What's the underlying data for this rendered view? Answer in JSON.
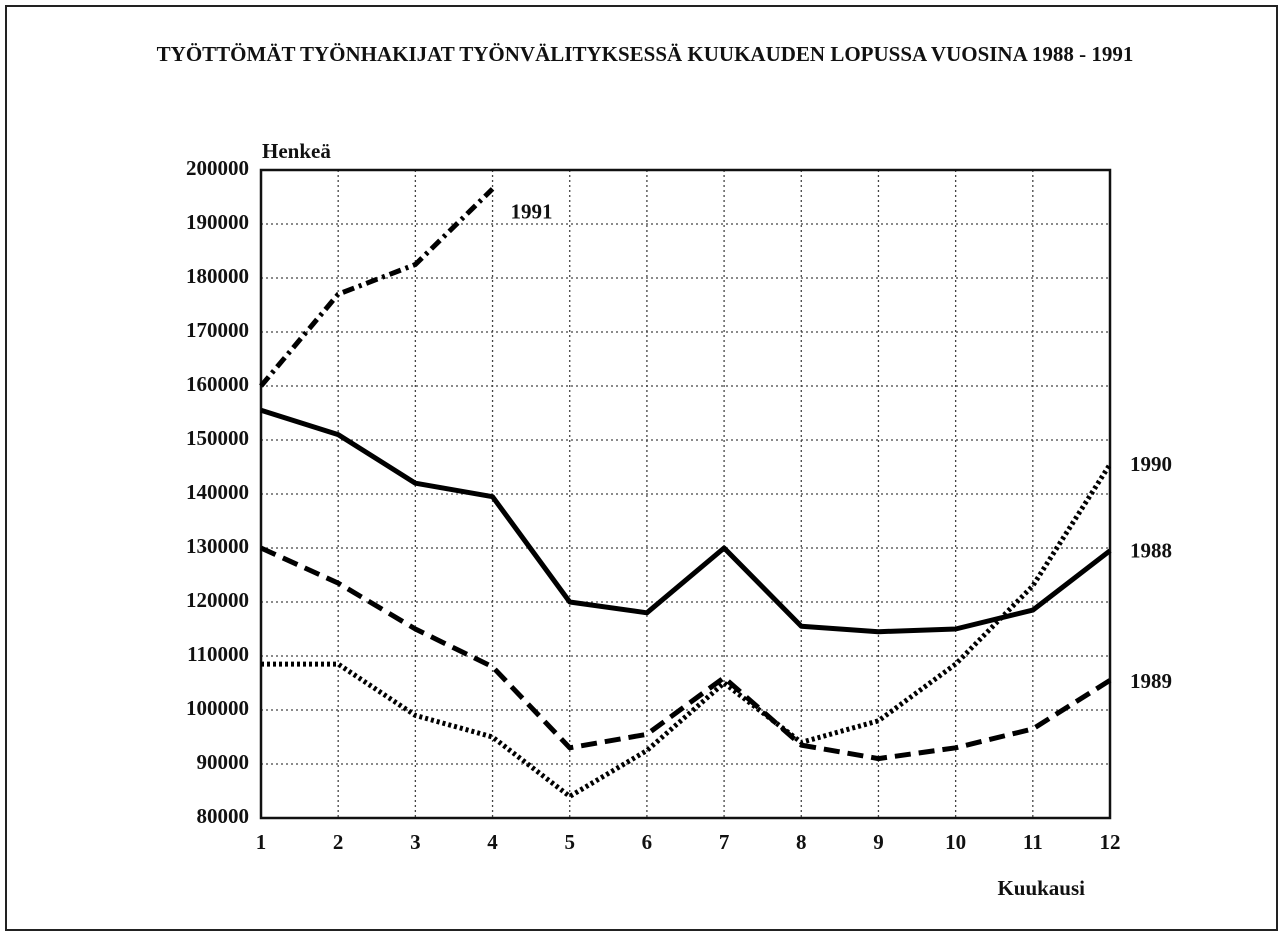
{
  "chart_data": {
    "type": "line",
    "title": "TYÖTTÖMÄT TYÖNHAKIJAT TYÖNVÄLITYKSESSÄ KUUKAUDEN LOPUSSA VUOSINA 1988 - 1991",
    "y_label": "Henkeä",
    "x_label": "Kuukausi",
    "x": [
      1,
      2,
      3,
      4,
      5,
      6,
      7,
      8,
      9,
      10,
      11,
      12
    ],
    "xlim": [
      1,
      12
    ],
    "xticks": [
      1,
      2,
      3,
      4,
      5,
      6,
      7,
      8,
      9,
      10,
      11,
      12
    ],
    "ylim": [
      80000,
      200000
    ],
    "yticks": [
      80000,
      90000,
      100000,
      110000,
      120000,
      130000,
      140000,
      150000,
      160000,
      170000,
      180000,
      190000,
      200000
    ],
    "grid": true,
    "series": [
      {
        "name": "1991",
        "color": "#000000",
        "style": "dashdot",
        "values": [
          160000,
          177000,
          182500,
          196500,
          null,
          null,
          null,
          null,
          null,
          null,
          null,
          null
        ]
      },
      {
        "name": "1990",
        "color": "#000000",
        "style": "dotted",
        "values": [
          108500,
          108500,
          99000,
          95000,
          84000,
          92500,
          105000,
          94000,
          98000,
          108500,
          123000,
          145500
        ]
      },
      {
        "name": "1988",
        "color": "#000000",
        "style": "solid",
        "values": [
          155500,
          151000,
          142000,
          139500,
          120000,
          118000,
          130000,
          115500,
          114500,
          115000,
          118500,
          129500
        ]
      },
      {
        "name": "1989",
        "color": "#000000",
        "style": "dashed",
        "values": [
          130000,
          123500,
          115000,
          108000,
          93000,
          95500,
          106000,
          93500,
          91000,
          93000,
          96500,
          105500
        ]
      }
    ]
  }
}
